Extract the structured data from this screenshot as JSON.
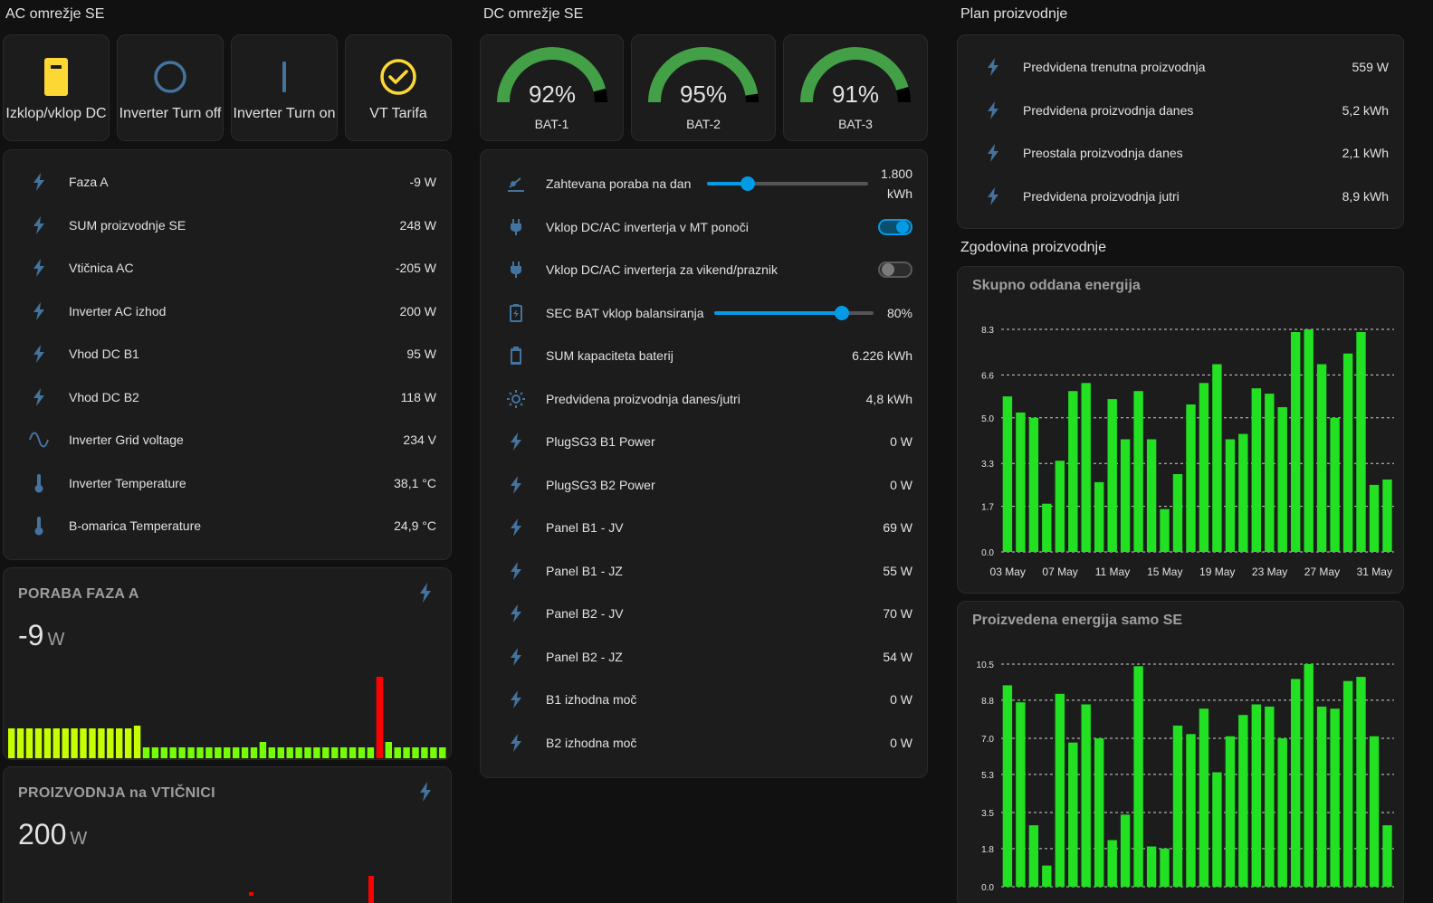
{
  "colors": {
    "icon_blue": "#44739e",
    "accent": "#039be5",
    "yellow": "#fdd835",
    "gauge_green": "#43a047",
    "bar_green": "#22e022",
    "spark_red": "#ff0000"
  },
  "ac": {
    "title": "AC omrežje SE",
    "buttons": [
      {
        "label": "Izklop/vklop DC",
        "icon": "door-icon"
      },
      {
        "label": "Inverter Turn off",
        "icon": "power-off-icon"
      },
      {
        "label": "Inverter Turn on",
        "icon": "power-on-icon"
      },
      {
        "label": "VT Tarifa",
        "icon": "check-circle-icon"
      }
    ],
    "rows": [
      {
        "icon": "flash-icon",
        "label": "Faza A",
        "value": "-9 W"
      },
      {
        "icon": "flash-icon",
        "label": "SUM proizvodnje SE",
        "value": "248 W"
      },
      {
        "icon": "flash-icon",
        "label": "Vtičnica AC",
        "value": "-205 W"
      },
      {
        "icon": "flash-icon",
        "label": "Inverter AC izhod",
        "value": "200 W"
      },
      {
        "icon": "flash-icon",
        "label": "Vhod DC B1",
        "value": "95 W"
      },
      {
        "icon": "flash-icon",
        "label": "Vhod DC B2",
        "value": "118 W"
      },
      {
        "icon": "sine-wave-icon",
        "label": "Inverter Grid voltage",
        "value": "234 V"
      },
      {
        "icon": "thermometer-icon",
        "label": "Inverter Temperature",
        "value": "38,1 °C"
      },
      {
        "icon": "thermometer-icon",
        "label": "B-omarica Temperature",
        "value": "24,9 °C"
      }
    ],
    "stat1": {
      "title": "PORABA FAZA A",
      "value": "-9",
      "unit": "W",
      "spark": [
        0.55,
        0.55,
        0.55,
        0.55,
        0.55,
        0.55,
        0.55,
        0.55,
        0.55,
        0.55,
        0.55,
        0.55,
        0.55,
        0.55,
        0.6,
        0.2,
        0.2,
        0.2,
        0.2,
        0.2,
        0.2,
        0.2,
        0.2,
        0.2,
        0.2,
        0.2,
        0.2,
        0.2,
        0.3,
        0.2,
        0.2,
        0.2,
        0.2,
        0.2,
        0.2,
        0.2,
        0.2,
        0.2,
        0.2,
        0.2,
        0.2,
        1.5,
        0.3,
        0.2,
        0.2,
        0.2,
        0.2,
        0.2,
        0.2
      ]
    },
    "stat2": {
      "title": "PROIZVODNJA na VTIČNICI",
      "value": "200",
      "unit": "W"
    }
  },
  "dc": {
    "title": "DC omrežje SE",
    "gauges": [
      {
        "name": "BAT-1",
        "label": "92%",
        "value": 92
      },
      {
        "name": "BAT-2",
        "label": "95%",
        "value": 95
      },
      {
        "name": "BAT-3",
        "label": "91%",
        "value": 91
      }
    ],
    "rows": [
      {
        "icon": "slider-icon",
        "label": "Zahtevana poraba na dan",
        "value": "1.800",
        "value2": "kWh",
        "slider": 0.25
      },
      {
        "icon": "plug-icon",
        "label": "Vklop DC/AC inverterja v MT ponoči",
        "toggle": true
      },
      {
        "icon": "plug-icon",
        "label": "Vklop DC/AC inverterja za vikend/praznik",
        "toggle": false
      },
      {
        "icon": "battery-charging-icon",
        "label": "SEC BAT vklop balansiranja",
        "value": "80%",
        "slider": 0.8
      },
      {
        "icon": "battery-icon",
        "label": "SUM kapaciteta baterij",
        "value": "6.226 kWh"
      },
      {
        "icon": "sun-icon",
        "label": "Predvidena proizvodnja danes/jutri",
        "value": "4,8 kWh"
      },
      {
        "icon": "flash-icon",
        "label": "PlugSG3 B1 Power",
        "value": "0 W"
      },
      {
        "icon": "flash-icon",
        "label": "PlugSG3 B2 Power",
        "value": "0 W"
      },
      {
        "icon": "flash-icon",
        "label": "Panel B1 - JV",
        "value": "69 W"
      },
      {
        "icon": "flash-icon",
        "label": "Panel B1 - JZ",
        "value": "55 W"
      },
      {
        "icon": "flash-icon",
        "label": "Panel B2 - JV",
        "value": "70 W"
      },
      {
        "icon": "flash-icon",
        "label": "Panel B2 - JZ",
        "value": "54 W"
      },
      {
        "icon": "flash-icon",
        "label": "B1 izhodna moč",
        "value": "0 W"
      },
      {
        "icon": "flash-icon",
        "label": "B2 izhodna moč",
        "value": "0 W"
      }
    ]
  },
  "plan": {
    "title": "Plan proizvodnje",
    "rows": [
      {
        "icon": "flash-icon",
        "label": "Predvidena trenutna proizvodnja",
        "value": "559 W"
      },
      {
        "icon": "flash-icon",
        "label": "Predvidena proizvodnja danes",
        "value": "5,2 kWh"
      },
      {
        "icon": "flash-icon",
        "label": "Preostala proizvodnja danes",
        "value": "2,1 kWh"
      },
      {
        "icon": "flash-icon",
        "label": "Predvidena proizvodnja jutri",
        "value": "8,9 kWh"
      }
    ],
    "history_title": "Zgodovina proizvodnje"
  },
  "chart_data": [
    {
      "type": "bar",
      "title": "Skupno oddana energija",
      "x_tick_labels": [
        "03 May",
        "07 May",
        "11 May",
        "15 May",
        "19 May",
        "23 May",
        "27 May",
        "31 May"
      ],
      "y_tick_labels": [
        "0.0",
        "1.7",
        "3.3",
        "5.0",
        "6.6",
        "8.3"
      ],
      "ylim": [
        0,
        8.3
      ],
      "grid": true,
      "values": [
        5.8,
        5.2,
        5.0,
        1.8,
        3.4,
        6.0,
        6.3,
        2.6,
        5.7,
        4.2,
        6.0,
        4.2,
        1.6,
        2.9,
        5.5,
        6.3,
        7.0,
        4.2,
        4.4,
        6.1,
        5.9,
        5.4,
        8.2,
        8.3,
        7.0,
        5.0,
        7.4,
        8.2,
        2.5,
        2.7
      ]
    },
    {
      "type": "bar",
      "title": "Proizvedena energija samo SE",
      "y_tick_labels": [
        "0.0",
        "1.8",
        "3.5",
        "5.3",
        "7.0",
        "8.8",
        "10.5"
      ],
      "ylim": [
        0,
        10.5
      ],
      "grid": true,
      "values": [
        9.5,
        8.7,
        2.9,
        1.0,
        9.1,
        6.8,
        8.6,
        7.0,
        2.2,
        3.4,
        10.4,
        1.9,
        1.8,
        7.6,
        7.2,
        8.4,
        5.4,
        7.1,
        8.1,
        8.6,
        8.5,
        7.0,
        9.8,
        10.5,
        8.5,
        8.4,
        9.7,
        9.9,
        7.1,
        2.9
      ]
    }
  ]
}
